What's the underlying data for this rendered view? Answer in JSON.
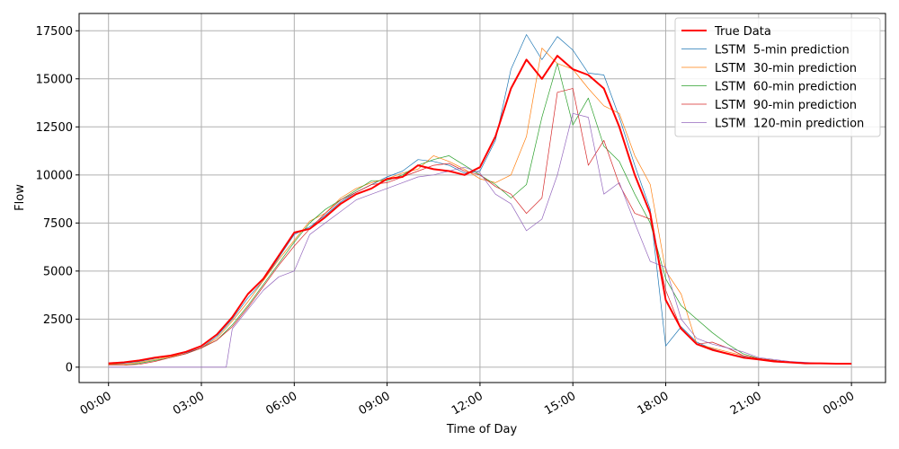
{
  "chart_data": {
    "type": "line",
    "title": "",
    "xlabel": "Time of Day",
    "ylabel": "Flow",
    "x_unit": "hour of day",
    "xlim": [
      -0.95,
      25.1
    ],
    "ylim": [
      -800,
      18400
    ],
    "x_ticks": [
      {
        "value": 0,
        "label": "00:00"
      },
      {
        "value": 3,
        "label": "03:00"
      },
      {
        "value": 6,
        "label": "06:00"
      },
      {
        "value": 9,
        "label": "09:00"
      },
      {
        "value": 12,
        "label": "12:00"
      },
      {
        "value": 15,
        "label": "15:00"
      },
      {
        "value": 18,
        "label": "18:00"
      },
      {
        "value": 21,
        "label": "21:00"
      },
      {
        "value": 24,
        "label": "00:00"
      }
    ],
    "y_ticks": [
      {
        "value": 0,
        "label": "0"
      },
      {
        "value": 2500,
        "label": "2500"
      },
      {
        "value": 5000,
        "label": "5000"
      },
      {
        "value": 7500,
        "label": "7500"
      },
      {
        "value": 10000,
        "label": "10000"
      },
      {
        "value": 12500,
        "label": "12500"
      },
      {
        "value": 15000,
        "label": "15000"
      },
      {
        "value": 17500,
        "label": "17500"
      }
    ],
    "grid": true,
    "legend_position": "top-right",
    "series": [
      {
        "name": "True Data",
        "color": "#ff0000",
        "width": 2,
        "x": [
          0,
          0.5,
          1,
          1.5,
          2,
          2.5,
          3,
          3.5,
          4,
          4.5,
          5,
          5.5,
          6,
          6.5,
          7,
          7.5,
          8,
          8.5,
          9,
          9.5,
          10,
          10.5,
          11,
          11.5,
          12,
          12.5,
          13,
          13.5,
          14,
          14.5,
          15,
          15.5,
          16,
          16.5,
          17,
          17.5,
          18,
          18.5,
          19,
          19.5,
          20,
          20.5,
          21,
          21.5,
          22,
          22.5,
          23,
          23.5,
          24
        ],
        "y": [
          200,
          250,
          350,
          500,
          600,
          800,
          1100,
          1700,
          2600,
          3800,
          4600,
          5800,
          7000,
          7200,
          7800,
          8500,
          9000,
          9300,
          9800,
          9900,
          10500,
          10300,
          10200,
          10000,
          10400,
          12000,
          14500,
          16000,
          15000,
          16200,
          15500,
          15200,
          14500,
          12500,
          10000,
          8000,
          3500,
          2000,
          1200,
          900,
          700,
          500,
          400,
          300,
          250,
          200,
          200,
          180,
          180
        ]
      },
      {
        "name": "LSTM  5-min prediction",
        "color": "#1f77b4",
        "width": 0.7,
        "x": [
          0,
          0.5,
          1,
          1.5,
          2,
          2.5,
          3,
          3.5,
          4,
          4.5,
          5,
          5.5,
          6,
          6.5,
          7,
          7.5,
          8,
          8.5,
          9,
          9.5,
          10,
          10.5,
          11,
          11.5,
          12,
          12.5,
          13,
          13.5,
          14,
          14.5,
          15,
          15.5,
          16,
          16.5,
          17,
          17.5,
          18,
          18.5,
          19,
          19.5,
          20,
          20.5,
          21,
          21.5,
          22,
          22.5,
          23,
          23.5,
          24
        ],
        "y": [
          150,
          200,
          300,
          450,
          600,
          750,
          1000,
          1600,
          2500,
          3600,
          4500,
          5700,
          6900,
          7300,
          7900,
          8600,
          9100,
          9500,
          9900,
          10200,
          10800,
          10700,
          10500,
          10100,
          10200,
          11800,
          15500,
          17300,
          16000,
          17200,
          16500,
          15300,
          15200,
          13000,
          10500,
          8200,
          1100,
          2100,
          1300,
          950,
          700,
          550,
          400,
          300,
          250,
          200,
          200,
          180,
          180
        ]
      },
      {
        "name": "LSTM  30-min prediction",
        "color": "#ff7f0e",
        "width": 0.7,
        "x": [
          0,
          0.5,
          1,
          1.5,
          2,
          2.5,
          3,
          3.5,
          4,
          4.5,
          5,
          5.5,
          6,
          6.5,
          7,
          7.5,
          8,
          8.5,
          9,
          9.5,
          10,
          10.5,
          11,
          11.5,
          12,
          12.5,
          13,
          13.5,
          14,
          14.5,
          15,
          15.5,
          16,
          16.5,
          17,
          17.5,
          18,
          18.5,
          19,
          19.5,
          20,
          20.5,
          21,
          21.5,
          22,
          22.5,
          23,
          23.5,
          24
        ],
        "y": [
          150,
          150,
          250,
          400,
          550,
          700,
          1000,
          1500,
          2400,
          3400,
          4500,
          5600,
          6600,
          7600,
          8000,
          8800,
          9300,
          9600,
          9800,
          10100,
          10300,
          11000,
          10700,
          10300,
          9800,
          9600,
          10000,
          12000,
          16600,
          15800,
          15500,
          14500,
          13600,
          13200,
          11000,
          9500,
          5000,
          3800,
          1200,
          1000,
          800,
          600,
          450,
          350,
          250,
          200,
          200,
          180,
          180
        ]
      },
      {
        "name": "LSTM  60-min prediction",
        "color": "#2ca02c",
        "width": 0.7,
        "x": [
          0,
          0.5,
          1,
          1.5,
          2,
          2.5,
          3,
          3.5,
          4,
          4.5,
          5,
          5.5,
          6,
          6.5,
          7,
          7.5,
          8,
          8.5,
          9,
          9.5,
          10,
          10.5,
          11,
          11.5,
          12,
          12.5,
          13,
          13.5,
          14,
          14.5,
          15,
          15.5,
          16,
          16.5,
          17,
          17.5,
          18,
          18.5,
          19,
          19.5,
          20,
          20.5,
          21,
          21.5,
          22,
          22.5,
          23,
          23.5,
          24
        ],
        "y": [
          100,
          100,
          200,
          350,
          500,
          700,
          1000,
          1400,
          2200,
          3200,
          4300,
          5400,
          6500,
          7500,
          8200,
          8700,
          9200,
          9700,
          9700,
          10000,
          10500,
          10800,
          11000,
          10500,
          10000,
          9500,
          8800,
          9500,
          13000,
          15800,
          12600,
          14000,
          11500,
          10700,
          9000,
          7500,
          4600,
          3200,
          2500,
          1800,
          1200,
          700,
          450,
          350,
          250,
          200,
          200,
          180,
          180
        ]
      },
      {
        "name": "LSTM  90-min prediction",
        "color": "#d62728",
        "width": 0.7,
        "x": [
          0,
          0.5,
          1,
          1.5,
          2,
          2.5,
          3,
          3.5,
          4,
          4.5,
          5,
          5.5,
          6,
          6.5,
          7,
          7.5,
          8,
          8.5,
          9,
          9.5,
          10,
          10.5,
          11,
          11.5,
          12,
          12.5,
          13,
          13.5,
          14,
          14.5,
          15,
          15.5,
          16,
          16.5,
          17,
          17.5,
          18,
          18.5,
          19,
          19.5,
          20,
          20.5,
          21,
          21.5,
          22,
          22.5,
          23,
          23.5,
          24
        ],
        "y": [
          100,
          100,
          150,
          300,
          500,
          700,
          1000,
          1400,
          2100,
          3100,
          4200,
          5300,
          6300,
          7200,
          8000,
          8700,
          9100,
          9500,
          9600,
          9900,
          10200,
          10500,
          10600,
          10200,
          10000,
          9400,
          9000,
          8000,
          8800,
          14300,
          14500,
          10500,
          11800,
          9500,
          8000,
          7700,
          4000,
          2000,
          1200,
          1300,
          1000,
          600,
          450,
          350,
          250,
          200,
          200,
          180,
          180
        ]
      },
      {
        "name": "LSTM  120-min prediction",
        "color": "#9467bd",
        "width": 0.7,
        "x": [
          0,
          0.5,
          1,
          1.5,
          2,
          2.5,
          3,
          3.5,
          3.8,
          4,
          4.5,
          5,
          5.5,
          6,
          6.5,
          7,
          7.5,
          8,
          8.5,
          9,
          9.5,
          10,
          10.5,
          11,
          11.5,
          12,
          12.5,
          13,
          13.5,
          14,
          14.5,
          15,
          15.5,
          16,
          16.5,
          17,
          17.5,
          18,
          18.5,
          19,
          19.5,
          20,
          20.5,
          21,
          21.5,
          22,
          22.5,
          23,
          23.5,
          24
        ],
        "y": [
          0,
          0,
          0,
          0,
          0,
          0,
          0,
          0,
          0,
          2000,
          3000,
          4000,
          4700,
          5000,
          6900,
          7500,
          8100,
          8700,
          9000,
          9300,
          9600,
          9900,
          10000,
          10200,
          10400,
          10100,
          9000,
          8500,
          7100,
          7700,
          10000,
          13200,
          13000,
          9000,
          9600,
          7500,
          5500,
          5200,
          2500,
          1500,
          1200,
          1000,
          800,
          500,
          400,
          300,
          250,
          200,
          180,
          180
        ]
      }
    ]
  }
}
